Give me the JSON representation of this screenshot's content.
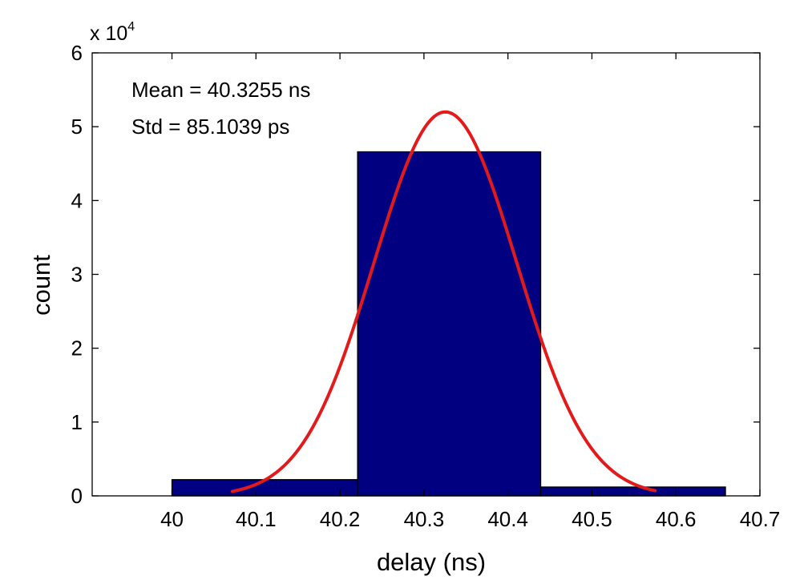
{
  "chart_data": {
    "type": "bar",
    "xlabel": "delay (ns)",
    "ylabel": "count",
    "y_multiplier_label": "x 10",
    "y_multiplier_exponent": "4",
    "xlim": [
      39.905,
      40.7
    ],
    "ylim": [
      0,
      60000
    ],
    "x_ticks": [
      40,
      40.1,
      40.2,
      40.3,
      40.4,
      40.5,
      40.6,
      40.7
    ],
    "x_tick_labels": [
      "40",
      "40.1",
      "40.2",
      "40.3",
      "40.4",
      "40.5",
      "40.6",
      "40.7"
    ],
    "y_ticks": [
      0,
      10000,
      20000,
      30000,
      40000,
      50000,
      60000
    ],
    "y_tick_labels": [
      "0",
      "1",
      "2",
      "3",
      "4",
      "5",
      "6"
    ],
    "bars": [
      {
        "x_start": 40.0,
        "x_end": 40.221,
        "value": 2200
      },
      {
        "x_start": 40.221,
        "x_end": 40.439,
        "value": 46600
      },
      {
        "x_start": 40.439,
        "x_end": 40.659,
        "value": 1200
      }
    ],
    "fit_curve": {
      "type": "gaussian",
      "mean": 40.3255,
      "std": 0.0851,
      "peak": 52000,
      "x_range": [
        40.072,
        40.575
      ]
    },
    "annotations": [
      "Mean = 40.3255 ns",
      "Std = 85.1039 ps"
    ],
    "colors": {
      "bar_fill": "#000080",
      "curve": "#e31a1c",
      "axis": "#000000"
    }
  }
}
